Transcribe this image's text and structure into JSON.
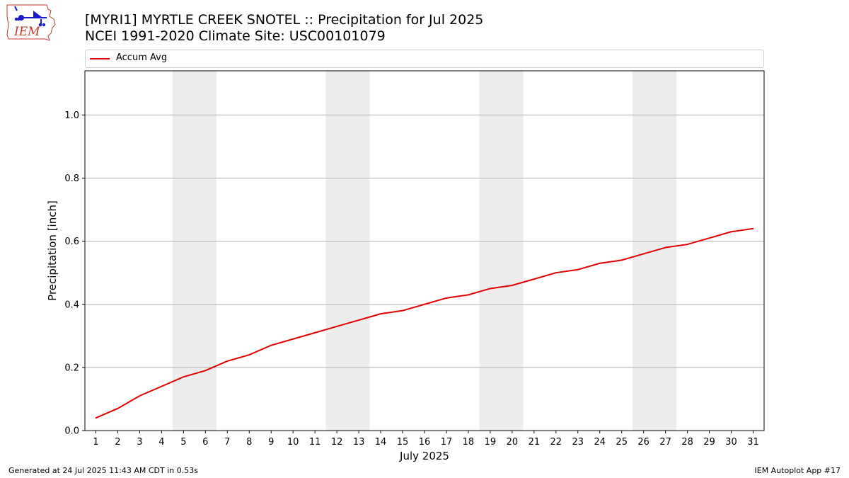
{
  "header": {
    "logo_text": "IEM",
    "title_line1": "[MYRI1] MYRTLE CREEK SNOTEL :: Precipitation for Jul 2025",
    "title_line2": "NCEI 1991-2020 Climate Site: USC00101079"
  },
  "colors": {
    "series": "#e00000",
    "weekend_band": "#ededed",
    "grid": "#b0b0b0",
    "logo_outline": "#c0392b",
    "logo_symbols": "#1a1acc"
  },
  "chart_data": {
    "type": "line",
    "xlabel": "July 2025",
    "ylabel": "Precipitation [inch]",
    "ylim": [
      0,
      1.14
    ],
    "yticks": [
      "0.0",
      "0.2",
      "0.4",
      "0.6",
      "0.8",
      "1.0"
    ],
    "grid": "horizontal",
    "legend_placement": "top",
    "x": [
      1,
      2,
      3,
      4,
      5,
      6,
      7,
      8,
      9,
      10,
      11,
      12,
      13,
      14,
      15,
      16,
      17,
      18,
      19,
      20,
      21,
      22,
      23,
      24,
      25,
      26,
      27,
      28,
      29,
      30,
      31
    ],
    "xlim": [
      0.5,
      31.5
    ],
    "shaded_ranges": [
      [
        4.5,
        6.5
      ],
      [
        11.5,
        13.5
      ],
      [
        18.5,
        20.5
      ],
      [
        25.5,
        27.5
      ]
    ],
    "series": [
      {
        "name": "Accum Avg",
        "values": [
          0.04,
          0.07,
          0.11,
          0.14,
          0.17,
          0.19,
          0.22,
          0.24,
          0.27,
          0.29,
          0.31,
          0.33,
          0.35,
          0.37,
          0.38,
          0.4,
          0.42,
          0.43,
          0.45,
          0.46,
          0.48,
          0.5,
          0.51,
          0.53,
          0.54,
          0.56,
          0.58,
          0.59,
          0.61,
          0.63,
          0.64
        ]
      }
    ]
  },
  "footer": {
    "left": "Generated at 24 Jul 2025 11:43 AM CDT in 0.53s",
    "right": "IEM Autoplot App #17"
  }
}
